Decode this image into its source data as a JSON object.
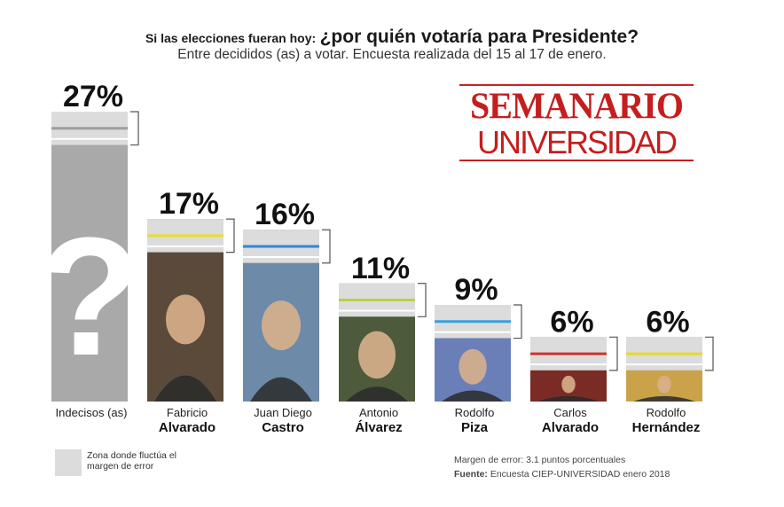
{
  "header": {
    "question_intro": "Si las elecciones fueran hoy:",
    "question": "¿por quién votaría para Presidente?",
    "subtitle": "Entre decididos (as) a votar. Encuesta realizada del 15 al 17 de enero."
  },
  "logo": {
    "line1": "SEMANARIO",
    "line2": "UNIVERSIDAD"
  },
  "chart_data": {
    "type": "bar",
    "title": "¿por quién votaría para Presidente?",
    "unit": "%",
    "categories": [
      {
        "first": "Indecisos (as)",
        "last": ""
      },
      {
        "first": "Fabricio",
        "last": "Alvarado"
      },
      {
        "first": "Juan Diego",
        "last": "Castro"
      },
      {
        "first": "Antonio",
        "last": "Álvarez"
      },
      {
        "first": "Rodolfo",
        "last": "Piza"
      },
      {
        "first": "Carlos",
        "last": "Alvarado"
      },
      {
        "first": "Rodolfo",
        "last": "Hernández"
      }
    ],
    "values": [
      27,
      17,
      16,
      11,
      9,
      6,
      6
    ],
    "labels": [
      "27%",
      "17%",
      "16%",
      "11%",
      "9%",
      "6%",
      "6%"
    ],
    "marker_colors": [
      "#9e9e9e",
      "#e6df2a",
      "#2e86d6",
      "#b8d14a",
      "#3aa0e0",
      "#d2312d",
      "#e8d92a"
    ],
    "margin_of_error": 3.1,
    "undecided_symbol": "?"
  },
  "legend": {
    "text": "Zona donde fluctúa el margen de error"
  },
  "footer": {
    "margin_note": "Margen de error: 3.1 puntos porcentuales",
    "source_label": "Fuente:",
    "source_text": "Encuesta CIEP-UNIVERSIDAD enero 2018"
  }
}
